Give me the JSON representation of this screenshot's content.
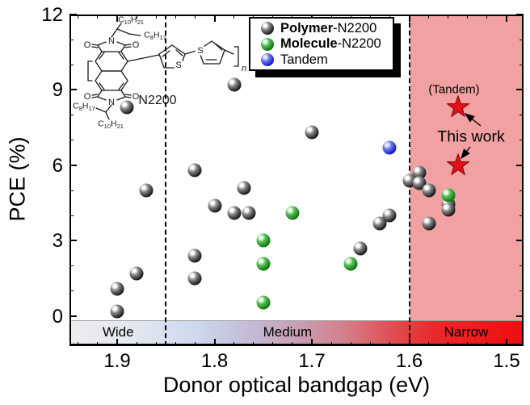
{
  "axes": {
    "x": {
      "title": "Donor optical bandgap (eV)",
      "ticks": [
        "1.9",
        "1.8",
        "1.7",
        "1.6",
        "1.5"
      ],
      "tick_values": [
        1.9,
        1.8,
        1.7,
        1.6,
        1.5
      ],
      "minor_step": 0.02,
      "reversed": true
    },
    "y": {
      "title": "PCE (%)",
      "ticks": [
        "0",
        "3",
        "6",
        "9",
        "12"
      ],
      "tick_values": [
        0,
        3,
        6,
        9,
        12
      ],
      "minor_step": 1
    }
  },
  "legend": {
    "items": [
      {
        "bold": "Polymer",
        "rest": "-N2200",
        "color": "#111111"
      },
      {
        "bold": "Molecule",
        "rest": "-N2200",
        "color": "#158a15"
      },
      {
        "bold": "",
        "rest": "Tandem",
        "color": "#1f1fd9"
      }
    ]
  },
  "regions": {
    "band_labels": [
      {
        "label": "Wide",
        "from": 1.948,
        "to": 1.85
      },
      {
        "label": "Medium",
        "from": 1.85,
        "to": 1.6
      },
      {
        "label": "Narrow",
        "from": 1.6,
        "to": 1.483
      }
    ],
    "dashed_lines": [
      1.85,
      1.6
    ],
    "highlight": {
      "from": 1.6,
      "to": 1.483,
      "color": "rgba(220,20,20,0.4)"
    }
  },
  "annotations": {
    "tandem_label": "(Tandem)",
    "this_work_label": "This work",
    "molecule_name": "N2200",
    "structure_labels": {
      "top_chain1": "C10H21",
      "top_chain2": "C8H17",
      "bottom_chain1": "C8H17",
      "bottom_chain2": "C10H21",
      "repeat": "n",
      "atoms": {
        "nitrogen": "N",
        "oxygen": "O",
        "sulfur": "S"
      }
    }
  },
  "chart_data": {
    "type": "scatter",
    "title": "",
    "xlabel": "Donor optical bandgap (eV)",
    "ylabel": "PCE (%)",
    "x_reversed": true,
    "xlim": [
      1.95,
      1.48
    ],
    "ylim": [
      0,
      12
    ],
    "legend_position": "top-center",
    "series": [
      {
        "name": "Polymer-N2200",
        "marker": "circle",
        "color": "#111111",
        "points": [
          [
            1.9,
            1.1
          ],
          [
            1.9,
            0.2
          ],
          [
            1.89,
            8.3
          ],
          [
            1.88,
            1.7
          ],
          [
            1.87,
            5.0
          ],
          [
            1.82,
            5.8
          ],
          [
            1.82,
            2.4
          ],
          [
            1.82,
            1.5
          ],
          [
            1.8,
            4.4
          ],
          [
            1.78,
            9.2
          ],
          [
            1.78,
            4.1
          ],
          [
            1.77,
            5.1
          ],
          [
            1.765,
            4.1
          ],
          [
            1.7,
            7.3
          ],
          [
            1.65,
            2.7
          ],
          [
            1.63,
            3.7
          ],
          [
            1.62,
            4.0
          ],
          [
            1.6,
            5.4
          ],
          [
            1.59,
            5.7
          ],
          [
            1.59,
            5.3
          ],
          [
            1.58,
            5.0
          ],
          [
            1.58,
            3.7
          ],
          [
            1.56,
            4.45
          ],
          [
            1.56,
            4.25
          ]
        ]
      },
      {
        "name": "Molecule-N2200",
        "marker": "circle",
        "color": "#158a15",
        "points": [
          [
            1.75,
            3.0
          ],
          [
            1.75,
            2.1
          ],
          [
            1.75,
            0.55
          ],
          [
            1.72,
            4.1
          ],
          [
            1.66,
            2.1
          ],
          [
            1.56,
            4.8
          ]
        ]
      },
      {
        "name": "Tandem",
        "marker": "circle",
        "color": "#1f1fd9",
        "points": [
          [
            1.62,
            6.7
          ]
        ]
      },
      {
        "name": "This work",
        "marker": "star",
        "color": "#e0111a",
        "points": [
          [
            1.55,
            8.3
          ],
          [
            1.55,
            6.0
          ]
        ]
      }
    ]
  }
}
